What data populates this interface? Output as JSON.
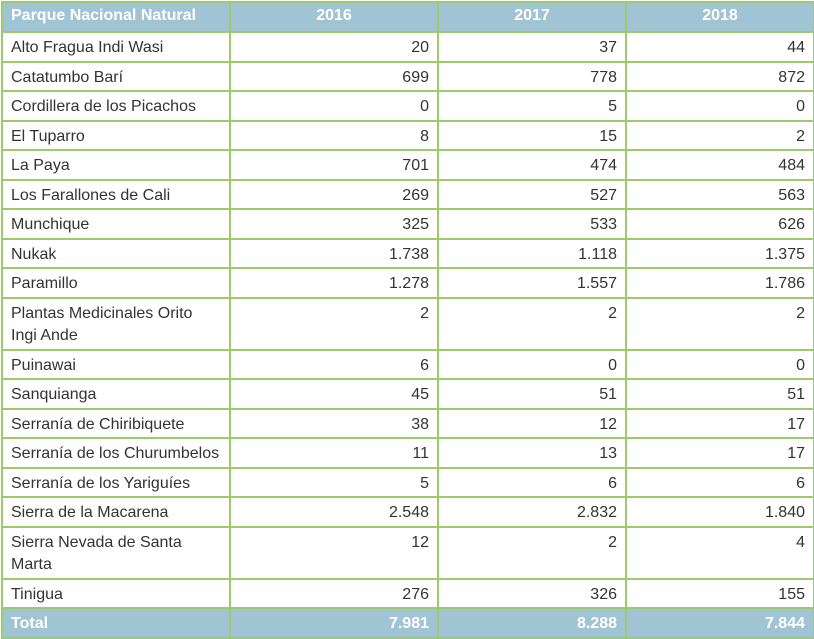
{
  "table": {
    "headers": [
      "Parque Nacional Natural",
      "2016",
      "2017",
      "2018"
    ],
    "rows": [
      {
        "name": "Alto Fragua Indi Wasi",
        "v2016": "20",
        "v2017": "37",
        "v2018": "44"
      },
      {
        "name": "Catatumbo Barí",
        "v2016": "699",
        "v2017": "778",
        "v2018": "872"
      },
      {
        "name": "Cordillera de los Picachos",
        "v2016": "0",
        "v2017": "5",
        "v2018": "0"
      },
      {
        "name": "El Tuparro",
        "v2016": "8",
        "v2017": "15",
        "v2018": "2"
      },
      {
        "name": "La Paya",
        "v2016": "701",
        "v2017": "474",
        "v2018": "484"
      },
      {
        "name": "Los Farallones de Cali",
        "v2016": "269",
        "v2017": "527",
        "v2018": "563"
      },
      {
        "name": "Munchique",
        "v2016": "325",
        "v2017": "533",
        "v2018": "626"
      },
      {
        "name": "Nukak",
        "v2016": "1.738",
        "v2017": "1.118",
        "v2018": "1.375"
      },
      {
        "name": "Paramillo",
        "v2016": "1.278",
        "v2017": "1.557",
        "v2018": "1.786"
      },
      {
        "name": "Plantas Medicinales Orito Ingi Ande",
        "v2016": "2",
        "v2017": "2",
        "v2018": "2"
      },
      {
        "name": "Puinawai",
        "v2016": "6",
        "v2017": "0",
        "v2018": "0"
      },
      {
        "name": "Sanquianga",
        "v2016": "45",
        "v2017": "51",
        "v2018": "51"
      },
      {
        "name": "Serranía de Chiribiquete",
        "v2016": "38",
        "v2017": "12",
        "v2018": "17"
      },
      {
        "name": "Serranía de los Churumbelos",
        "v2016": "11",
        "v2017": "13",
        "v2018": "17"
      },
      {
        "name": "Serranía de los Yariguíes",
        "v2016": "5",
        "v2017": "6",
        "v2018": "6"
      },
      {
        "name": "Sierra de la Macarena",
        "v2016": "2.548",
        "v2017": "2.832",
        "v2018": "1.840"
      },
      {
        "name": "Sierra Nevada de Santa Marta",
        "v2016": "12",
        "v2017": "2",
        "v2018": "4"
      },
      {
        "name": "Tinigua",
        "v2016": "276",
        "v2017": "326",
        "v2018": "155"
      }
    ],
    "total": {
      "name": "Total",
      "v2016": "7.981",
      "v2017": "8.288",
      "v2018": "7.844"
    }
  },
  "colors": {
    "header_bg": "#a0c4d4",
    "border": "#9ccb6c",
    "text": "#333333"
  }
}
